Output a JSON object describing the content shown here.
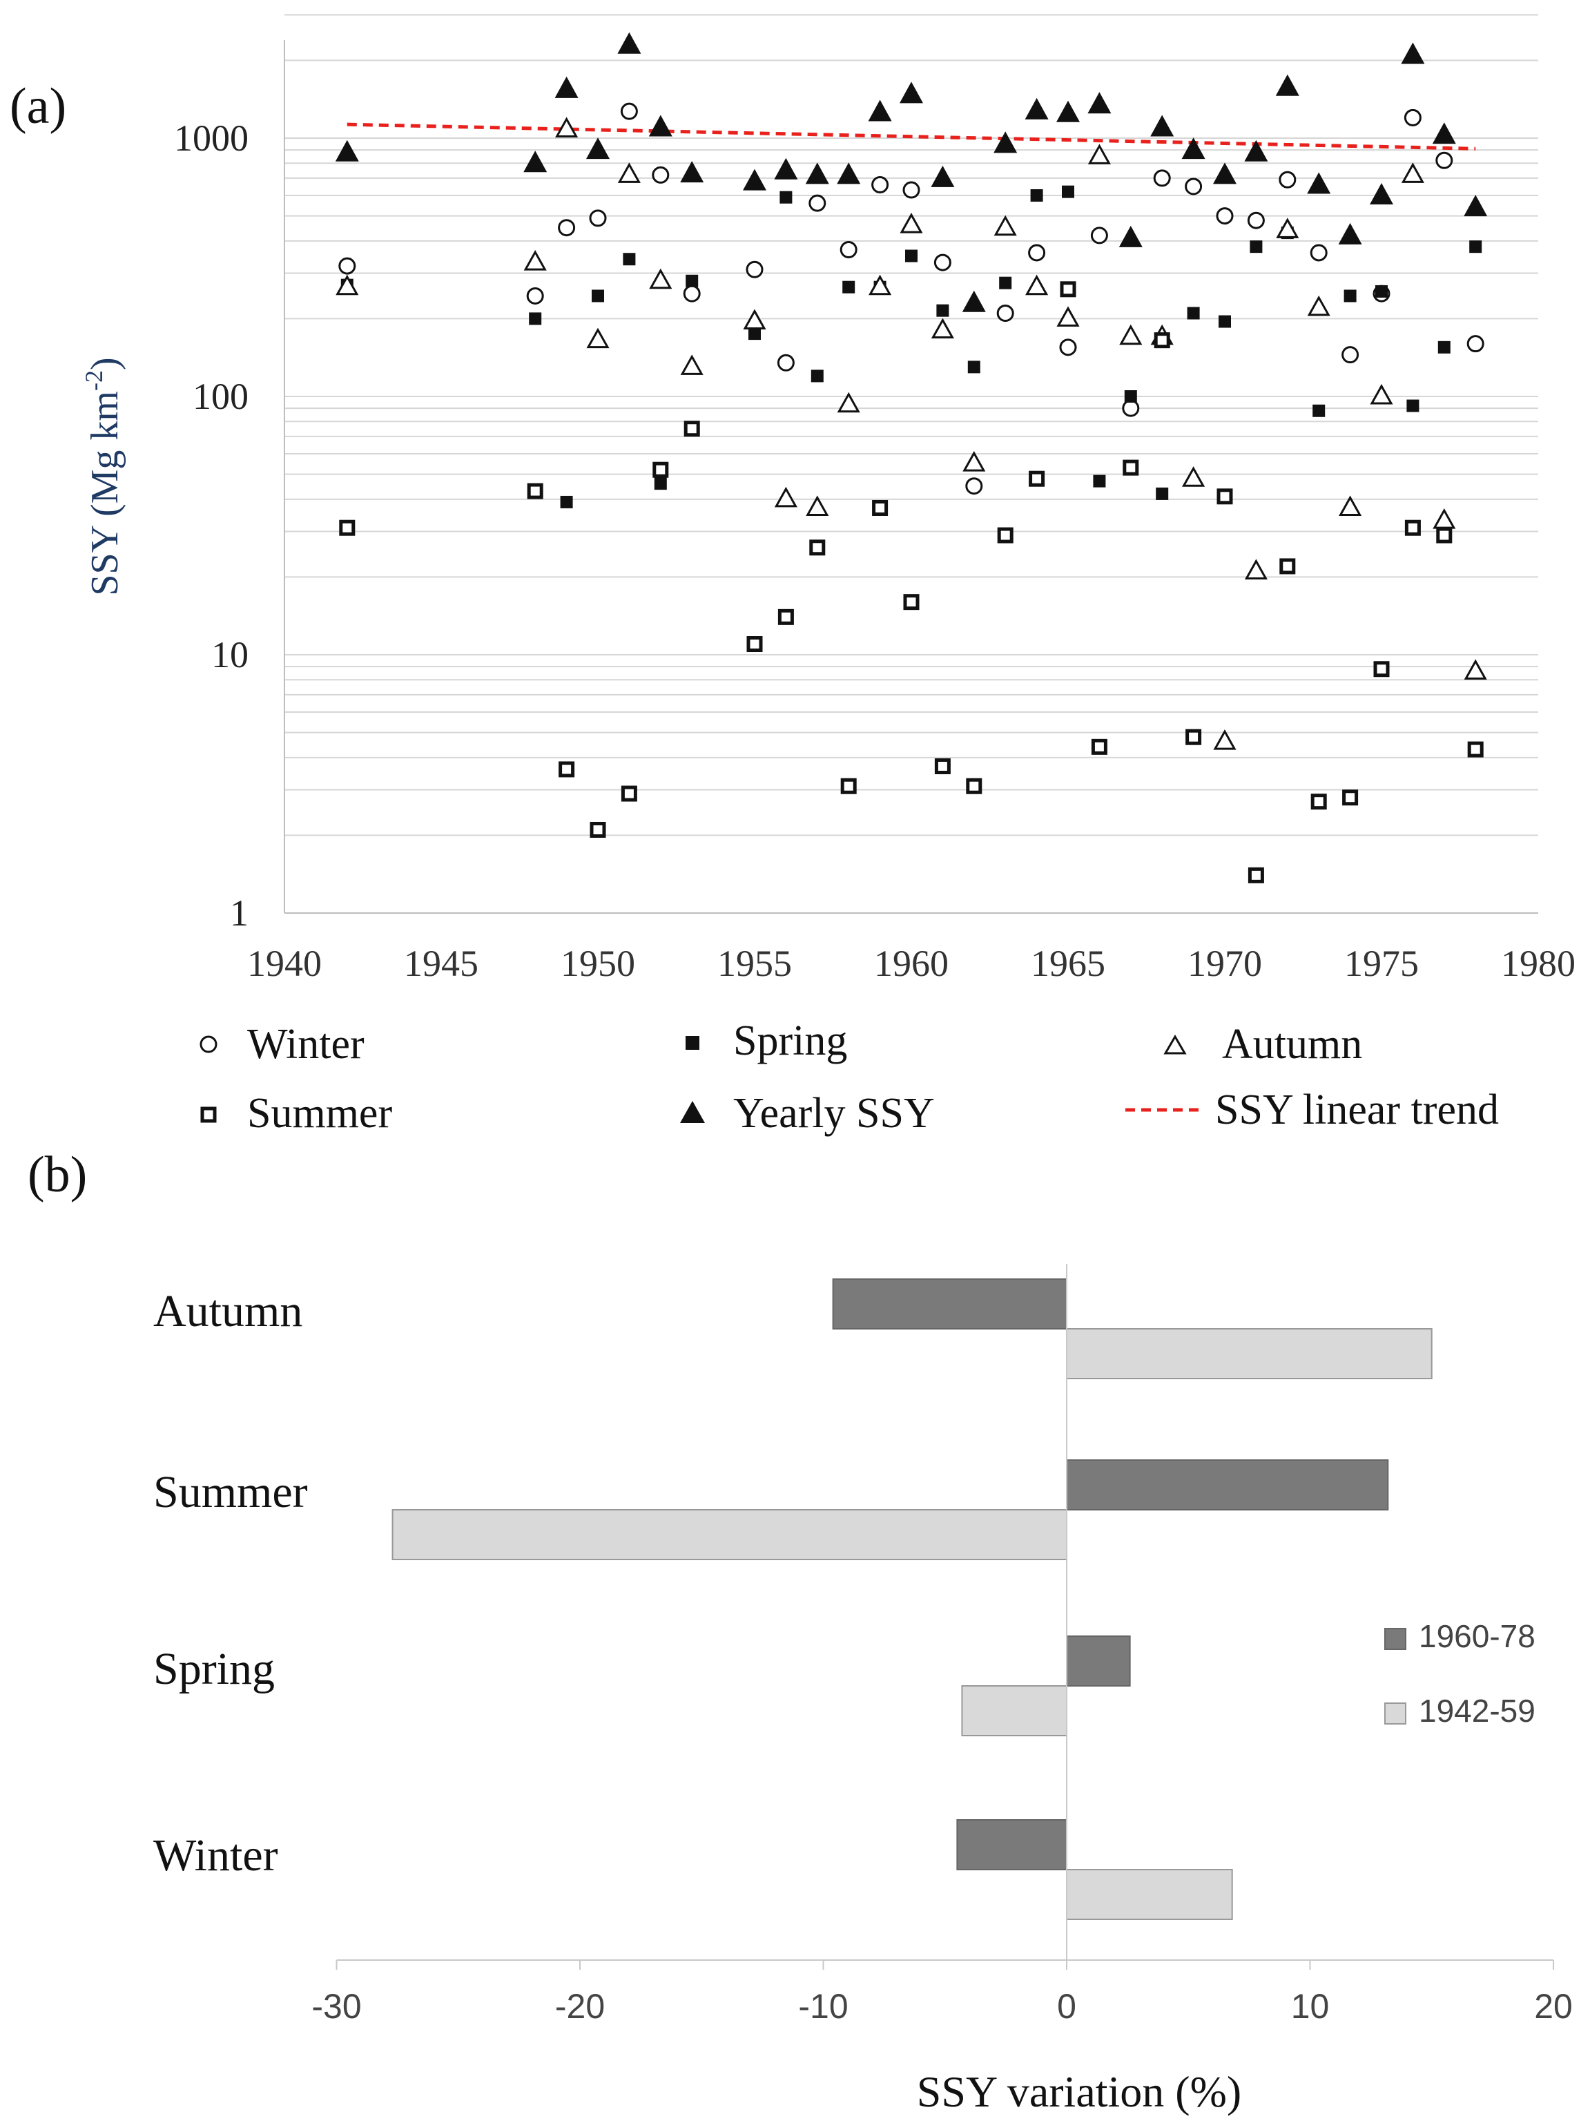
{
  "chart_data": [
    {
      "panel_label": "(a)",
      "type": "scatter",
      "ylabel": "SSY (Mg km",
      "ylabel_sup": "-2",
      "ylabel_close": ")",
      "yscale": "log",
      "ylim": [
        1,
        3000
      ],
      "yticks": [
        1,
        10,
        100,
        1000
      ],
      "ytick_labels": [
        "1",
        "10",
        "100",
        "1000"
      ],
      "xlim": [
        1940,
        1980
      ],
      "xticks": [
        1940,
        1945,
        1950,
        1955,
        1960,
        1965,
        1970,
        1975,
        1980
      ],
      "xtick_labels": [
        "1940",
        "1945",
        "1950",
        "1955",
        "1960",
        "1965",
        "1970",
        "1975",
        "1980"
      ],
      "grid": "horizontal minor log gridlines",
      "colors": {
        "points": "#111111",
        "trend": "#e8211d",
        "grid": "#d6d6d6"
      },
      "legend": [
        {
          "key": "winter",
          "label": "Winter",
          "marker": "open-circle"
        },
        {
          "key": "spring",
          "label": "Spring",
          "marker": "filled-square"
        },
        {
          "key": "autumn",
          "label": "Autumn",
          "marker": "open-triangle"
        },
        {
          "key": "summer",
          "label": "Summer",
          "marker": "open-square"
        },
        {
          "key": "yearly",
          "label": "Yearly SSY",
          "marker": "filled-triangle"
        },
        {
          "key": "trend",
          "label": "SSY linear trend",
          "marker": "dashed-line"
        }
      ],
      "series": [
        {
          "name": "Yearly SSY",
          "key": "yearly",
          "points": [
            [
              1942,
              880
            ],
            [
              1948,
              800
            ],
            [
              1949,
              1550
            ],
            [
              1950,
              900
            ],
            [
              1951,
              2300
            ],
            [
              1952,
              1100
            ],
            [
              1953,
              730
            ],
            [
              1955,
              680
            ],
            [
              1956,
              750
            ],
            [
              1957,
              720
            ],
            [
              1958,
              720
            ],
            [
              1959,
              1260
            ],
            [
              1960,
              1480
            ],
            [
              1961,
              700
            ],
            [
              1962,
              230
            ],
            [
              1963,
              950
            ],
            [
              1964,
              1280
            ],
            [
              1965,
              1250
            ],
            [
              1966,
              1350
            ],
            [
              1967,
              410
            ],
            [
              1968,
              1100
            ],
            [
              1969,
              900
            ],
            [
              1970,
              720
            ],
            [
              1971,
              880
            ],
            [
              1972,
              1580
            ],
            [
              1973,
              660
            ],
            [
              1974,
              420
            ],
            [
              1975,
              600
            ],
            [
              1976,
              2100
            ],
            [
              1977,
              1030
            ],
            [
              1978,
              540
            ]
          ]
        },
        {
          "name": "Winter",
          "key": "winter",
          "points": [
            [
              1942,
              320
            ],
            [
              1948,
              245
            ],
            [
              1949,
              450
            ],
            [
              1950,
              490
            ],
            [
              1951,
              1270
            ],
            [
              1952,
              720
            ],
            [
              1953,
              250
            ],
            [
              1955,
              310
            ],
            [
              1956,
              135
            ],
            [
              1957,
              560
            ],
            [
              1958,
              370
            ],
            [
              1959,
              660
            ],
            [
              1960,
              630
            ],
            [
              1961,
              330
            ],
            [
              1962,
              45
            ],
            [
              1963,
              210
            ],
            [
              1964,
              360
            ],
            [
              1965,
              155
            ],
            [
              1966,
              420
            ],
            [
              1967,
              90
            ],
            [
              1968,
              700
            ],
            [
              1969,
              650
            ],
            [
              1970,
              500
            ],
            [
              1971,
              480
            ],
            [
              1972,
              690
            ],
            [
              1973,
              360
            ],
            [
              1974,
              145
            ],
            [
              1975,
              250
            ],
            [
              1976,
              1200
            ],
            [
              1977,
              820
            ],
            [
              1978,
              160
            ]
          ]
        },
        {
          "name": "Spring",
          "key": "spring",
          "points": [
            [
              1942,
              270
            ],
            [
              1948,
              200
            ],
            [
              1949,
              39
            ],
            [
              1950,
              245
            ],
            [
              1951,
              340
            ],
            [
              1952,
              46
            ],
            [
              1953,
              280
            ],
            [
              1955,
              175
            ],
            [
              1956,
              590
            ],
            [
              1957,
              120
            ],
            [
              1958,
              265
            ],
            [
              1959,
              265
            ],
            [
              1960,
              350
            ],
            [
              1961,
              215
            ],
            [
              1962,
              130
            ],
            [
              1963,
              275
            ],
            [
              1964,
              600
            ],
            [
              1965,
              620
            ],
            [
              1966,
              47
            ],
            [
              1967,
              100
            ],
            [
              1968,
              42
            ],
            [
              1969,
              210
            ],
            [
              1970,
              195
            ],
            [
              1971,
              380
            ],
            [
              1972,
              430
            ],
            [
              1973,
              88
            ],
            [
              1974,
              245
            ],
            [
              1975,
              255
            ],
            [
              1976,
              92
            ],
            [
              1977,
              155
            ],
            [
              1978,
              380
            ]
          ]
        },
        {
          "name": "Autumn",
          "key": "autumn",
          "points": [
            [
              1942,
              265
            ],
            [
              1948,
              330
            ],
            [
              1949,
              1080
            ],
            [
              1950,
              165
            ],
            [
              1951,
              720
            ],
            [
              1952,
              280
            ],
            [
              1953,
              130
            ],
            [
              1955,
              195
            ],
            [
              1956,
              40
            ],
            [
              1957,
              37
            ],
            [
              1958,
              93
            ],
            [
              1959,
              265
            ],
            [
              1960,
              460
            ],
            [
              1961,
              180
            ],
            [
              1962,
              55
            ],
            [
              1963,
              450
            ],
            [
              1964,
              265
            ],
            [
              1965,
              200
            ],
            [
              1966,
              850
            ],
            [
              1967,
              170
            ],
            [
              1968,
              170
            ],
            [
              1969,
              48
            ],
            [
              1970,
              4.6
            ],
            [
              1971,
              21
            ],
            [
              1972,
              440
            ],
            [
              1973,
              220
            ],
            [
              1974,
              37
            ],
            [
              1975,
              100
            ],
            [
              1976,
              720
            ],
            [
              1977,
              33
            ],
            [
              1978,
              8.6
            ]
          ]
        },
        {
          "name": "Summer",
          "key": "summer",
          "points": [
            [
              1942,
              31
            ],
            [
              1948,
              43
            ],
            [
              1949,
              3.6
            ],
            [
              1950,
              2.1
            ],
            [
              1951,
              2.9
            ],
            [
              1952,
              52
            ],
            [
              1953,
              75
            ],
            [
              1955,
              11
            ],
            [
              1956,
              14
            ],
            [
              1957,
              26
            ],
            [
              1958,
              3.1
            ],
            [
              1959,
              37
            ],
            [
              1960,
              16
            ],
            [
              1961,
              3.7
            ],
            [
              1962,
              3.1
            ],
            [
              1963,
              29
            ],
            [
              1964,
              48
            ],
            [
              1965,
              260
            ],
            [
              1966,
              4.4
            ],
            [
              1967,
              53
            ],
            [
              1968,
              165
            ],
            [
              1969,
              4.8
            ],
            [
              1970,
              41
            ],
            [
              1971,
              1.4
            ],
            [
              1972,
              22
            ],
            [
              1973,
              2.7
            ],
            [
              1974,
              2.8
            ],
            [
              1975,
              8.8
            ],
            [
              1976,
              31
            ],
            [
              1977,
              29
            ],
            [
              1978,
              4.3
            ]
          ]
        },
        {
          "name": "SSY linear trend",
          "key": "trend",
          "line": [
            [
              1942,
              1130
            ],
            [
              1978,
              910
            ]
          ]
        }
      ]
    },
    {
      "panel_label": "(b)",
      "type": "bar",
      "orientation": "horizontal",
      "categories": [
        "Autumn",
        "Summer",
        "Spring",
        "Winter"
      ],
      "series": [
        {
          "name": "1960-78",
          "color": "#7a7a7a",
          "values": [
            -9.6,
            13.2,
            2.6,
            -4.5
          ]
        },
        {
          "name": "1942-59",
          "color": "#d9d9d9",
          "values": [
            15.0,
            -27.7,
            -4.3,
            6.8
          ]
        }
      ],
      "xlabel": "SSY variation (%)",
      "xlim": [
        -30,
        20
      ],
      "xticks": [
        -30,
        -20,
        -10,
        0,
        10,
        20
      ],
      "xtick_labels": [
        "-30",
        "-20",
        "-10",
        "0",
        "10",
        "20"
      ],
      "legend_position": "right"
    }
  ]
}
